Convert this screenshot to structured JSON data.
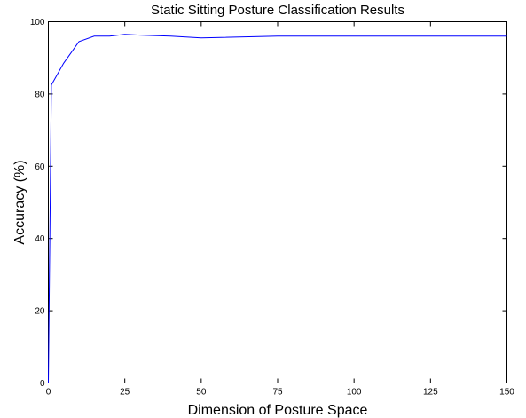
{
  "chart_data": {
    "type": "line",
    "title": "Static Sitting Posture Classification Results",
    "xlabel": "Dimension of Posture Space",
    "ylabel": "Accuracy (%)",
    "xlim": [
      0,
      150
    ],
    "ylim": [
      0,
      100
    ],
    "xticks": [
      0,
      25,
      50,
      75,
      100,
      125,
      150
    ],
    "yticks": [
      0,
      20,
      40,
      60,
      80,
      100
    ],
    "grid": false,
    "legend": "none",
    "series": [
      {
        "color": "#0000ff",
        "x": [
          0,
          1,
          3,
          5,
          10,
          15,
          20,
          25,
          30,
          40,
          50,
          75,
          100,
          125,
          150
        ],
        "y": [
          0,
          82.5,
          85.5,
          88.5,
          94.5,
          96,
          96,
          96.5,
          96.3,
          96,
          95.5,
          96,
          96,
          96,
          96
        ]
      }
    ]
  }
}
